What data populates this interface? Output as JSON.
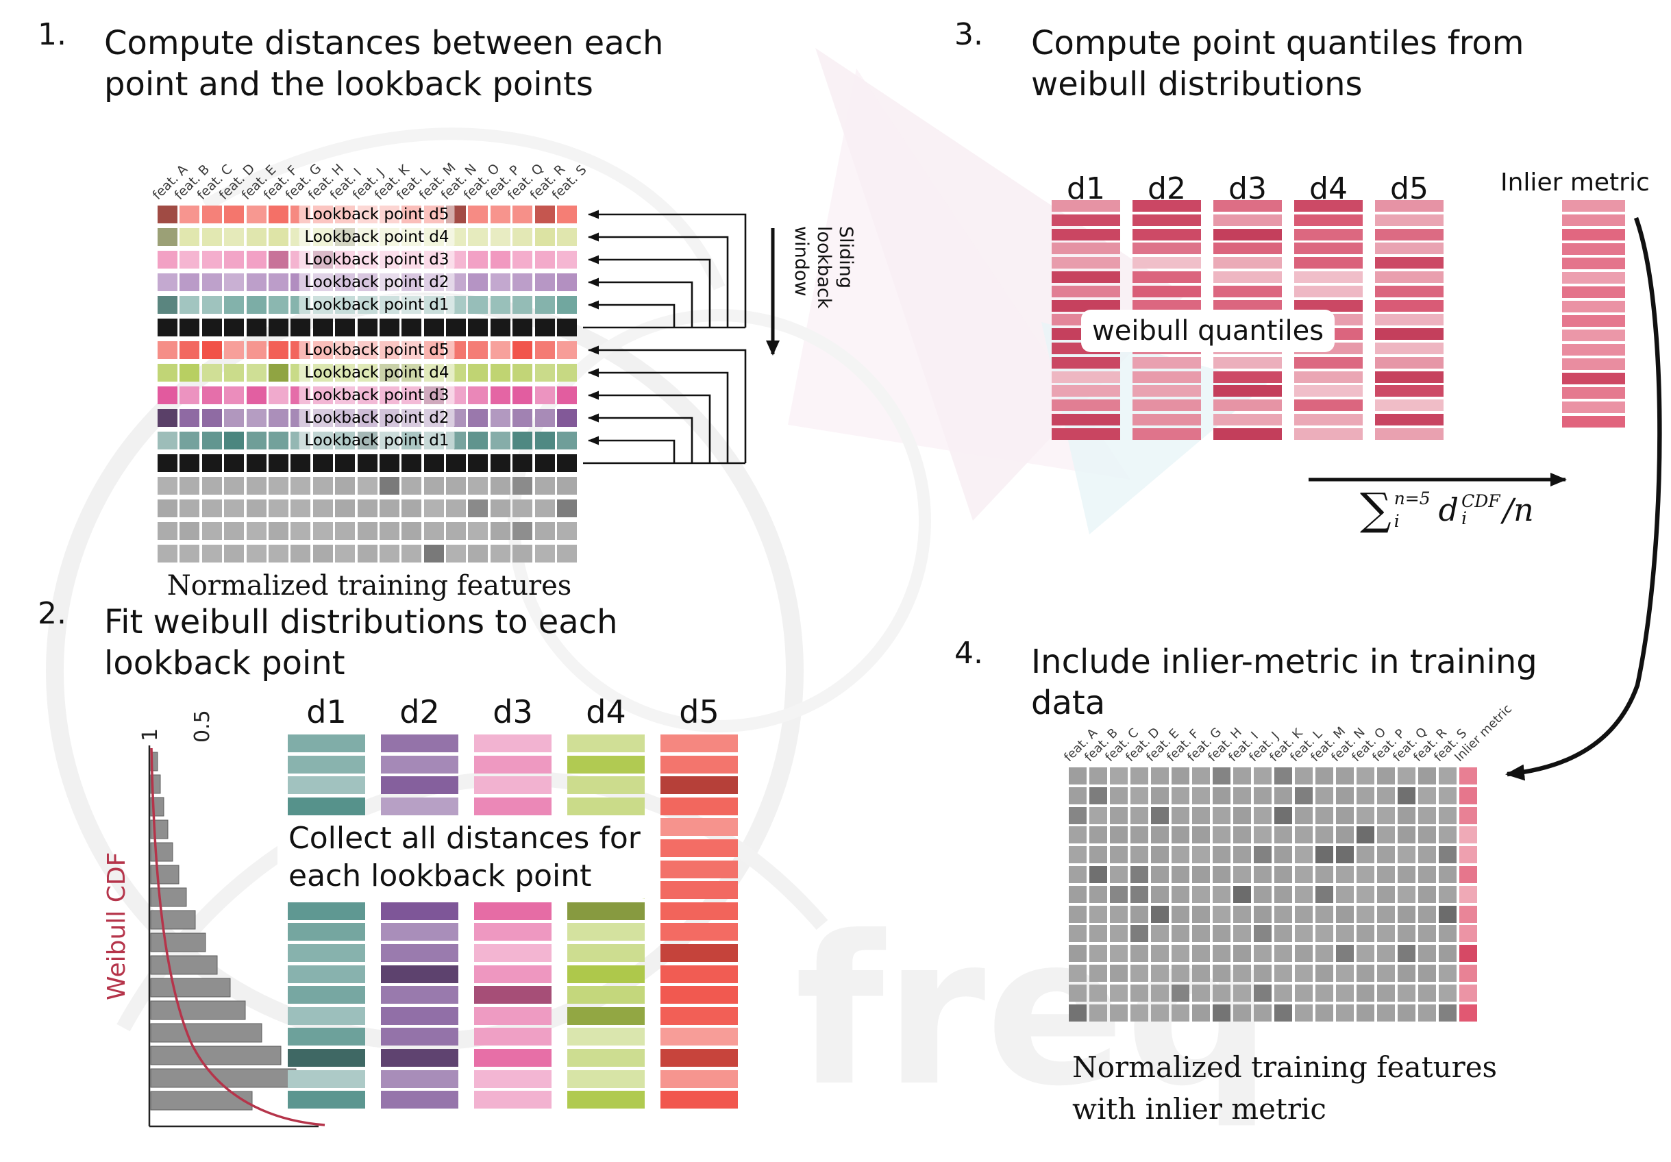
{
  "watermark": {
    "text": "freq"
  },
  "panels": {
    "p1": {
      "number": "1.",
      "title_lines": [
        "Compute distances between each",
        "point and the lookback points"
      ],
      "features": [
        "feat. A",
        "feat. B",
        "feat. C",
        "feat. D",
        "feat. E",
        "feat. F",
        "feat. G",
        "feat. H",
        "feat. I",
        "feat. J",
        "feat. K",
        "feat. L",
        "feat. M",
        "feat. N",
        "feat. O",
        "feat. P",
        "feat. Q",
        "feat. R",
        "feat. S"
      ],
      "caption": "Normalized training features",
      "sliding_label_lines": [
        "Sliding",
        "lookback",
        "window"
      ],
      "grid": {
        "cols": 19,
        "cellW": 29,
        "cellH": 26,
        "pitchX": 32.4,
        "pitchY": 33,
        "seed": 7,
        "rows": [
          {
            "label": "Lookback point d5",
            "color": "#f3655b",
            "vary": 0.45
          },
          {
            "label": "Lookback point d4",
            "color": "#dce3a3",
            "vary": 0.35
          },
          {
            "label": "Lookback point d3",
            "color": "#ee86b4",
            "vary": 0.4
          },
          {
            "label": "Lookback point d2",
            "color": "#a77fb8",
            "vary": 0.45
          },
          {
            "label": "Lookback point d1",
            "color": "#6ba39b",
            "vary": 0.45
          },
          {
            "color": "#181818",
            "solid": true
          },
          {
            "label": "Lookback point d5",
            "color": "#f04c42",
            "vary": 0.5
          },
          {
            "label": "Lookback point d4",
            "color": "#aec84b",
            "vary": 0.45
          },
          {
            "label": "Lookback point d3",
            "color": "#e1579c",
            "vary": 0.5
          },
          {
            "label": "Lookback point d2",
            "color": "#7d5294",
            "vary": 0.5
          },
          {
            "label": "Lookback point d1",
            "color": "#45827b",
            "vary": 0.5
          },
          {
            "color": "#181818",
            "solid": true
          },
          {
            "color": "#a8a8a8",
            "vary": 0.12
          },
          {
            "color": "#a8a8a8",
            "vary": 0.12
          },
          {
            "color": "#a8a8a8",
            "vary": 0.12
          },
          {
            "color": "#a8a8a8",
            "vary": 0.12
          }
        ]
      }
    },
    "p2": {
      "number": "2.",
      "title_lines": [
        "Fit weibull distributions to each",
        "lookback point"
      ],
      "weibull_label": "Weibull CDF",
      "ticks": [
        "1",
        "0.5"
      ],
      "headers": [
        "d1",
        "d2",
        "d3",
        "d4",
        "d5"
      ],
      "overlay_lines": [
        "Collect all distances for",
        "each lookback point"
      ],
      "histogram": [
        10,
        14,
        19,
        25,
        32,
        41,
        52,
        65,
        80,
        97,
        116,
        138,
        162,
        190,
        212,
        148
      ],
      "colgrid": {
        "rowsPerCol": 18,
        "cellW": 113,
        "cellH": 26,
        "pitchX": 136,
        "pitchY": 30.6,
        "seed": 11,
        "columns": [
          {
            "color": "#4e8d86",
            "vary": 0.55,
            "dark": 0.12
          },
          {
            "color": "#7b5295",
            "vary": 0.55,
            "dark": 0.12
          },
          {
            "color": "#e563a0",
            "vary": 0.55,
            "dark": 0.12
          },
          {
            "color": "#aec84b",
            "vary": 0.55,
            "dark": 0.12
          },
          {
            "color": "#f04c42",
            "vary": 0.55,
            "dark": 0.12
          }
        ]
      }
    },
    "p3": {
      "number": "3.",
      "title_lines": [
        "Compute point quantiles from",
        "weibull distributions"
      ],
      "headers": [
        "d1",
        "d2",
        "d3",
        "d4",
        "d5"
      ],
      "overlay": "weibull quantiles",
      "inlier_label": "Inlier metric",
      "formula": {
        "sigma": "∑",
        "sigma_sup": "n=5",
        "sigma_sub": "i",
        "var": "d",
        "var_sup": "CDF",
        "var_sub": "i",
        "tail": "/n"
      },
      "colgrid": {
        "rowsPerCol": 17,
        "cellW": 100,
        "cellH": 17,
        "pitchX": 118,
        "pitchY": 20.8,
        "seed": 13,
        "columns": [
          {
            "color": "#d85873",
            "vary": 0.62,
            "dark": 0.22,
            "darkColor": "#a01232"
          },
          {
            "color": "#d85873",
            "vary": 0.62,
            "dark": 0.22,
            "darkColor": "#a01232"
          },
          {
            "color": "#d85873",
            "vary": 0.62,
            "dark": 0.22,
            "darkColor": "#a01232"
          },
          {
            "color": "#d85873",
            "vary": 0.62,
            "dark": 0.22,
            "darkColor": "#a01232"
          },
          {
            "color": "#d85873",
            "vary": 0.62,
            "dark": 0.22,
            "darkColor": "#a01232"
          }
        ]
      },
      "inlier_grid": {
        "rowsPerCol": 16,
        "cellW": 92,
        "cellH": 17,
        "pitchX": 100,
        "pitchY": 21,
        "seed": 17,
        "columns": [
          {
            "color": "#e0607a",
            "vary": 0.5,
            "dark": 0.15,
            "darkColor": "#b11f3f"
          }
        ]
      }
    },
    "p4": {
      "number": "4.",
      "title_lines": [
        "Include inlier-metric in training",
        "data"
      ],
      "headers": [
        "feat. A",
        "feat. B",
        "feat. C",
        "feat. D",
        "feat. E",
        "feat. F",
        "feat. G",
        "feat. H",
        "feat. I",
        "feat. J",
        "feat. K",
        "feat. L",
        "feat. M",
        "feat. N",
        "feat. O",
        "feat. P",
        "feat. Q",
        "feat. R",
        "feat. S",
        "Inlier metric"
      ],
      "caption_lines": [
        "Normalized training features",
        "with inlier metric"
      ],
      "grid": {
        "cols": 20,
        "cellW": 26,
        "cellH": 25,
        "pitchX": 30,
        "pitchY": 28.8,
        "seed": 19,
        "lastCol": {
          "color": "#e05570",
          "vary": 0.5,
          "dark": 0.12,
          "darkColor": "#b11f3f"
        },
        "rows": [
          {
            "color": "#9d9d9d",
            "vary": 0.1
          },
          {
            "color": "#9d9d9d",
            "vary": 0.1
          },
          {
            "color": "#9d9d9d",
            "vary": 0.1
          },
          {
            "color": "#9d9d9d",
            "vary": 0.1
          },
          {
            "color": "#9d9d9d",
            "vary": 0.1
          },
          {
            "color": "#9d9d9d",
            "vary": 0.1
          },
          {
            "color": "#9d9d9d",
            "vary": 0.1
          },
          {
            "color": "#9d9d9d",
            "vary": 0.1
          },
          {
            "color": "#9d9d9d",
            "vary": 0.1
          },
          {
            "color": "#9d9d9d",
            "vary": 0.1
          },
          {
            "color": "#9d9d9d",
            "vary": 0.1
          },
          {
            "color": "#9d9d9d",
            "vary": 0.1
          },
          {
            "color": "#9d9d9d",
            "vary": 0.1
          }
        ]
      }
    }
  }
}
